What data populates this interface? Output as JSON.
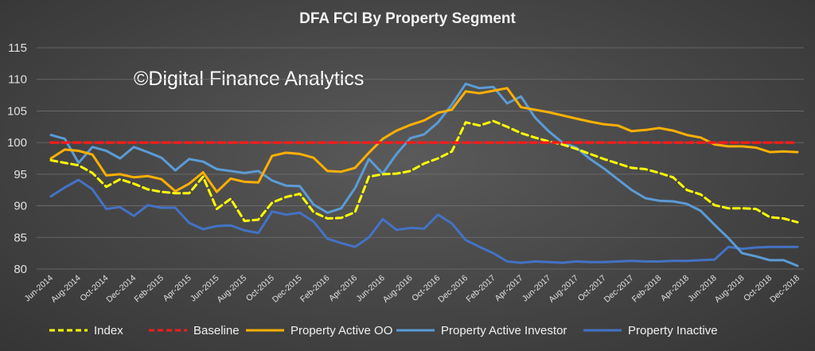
{
  "chart_data": {
    "type": "line",
    "title": "DFA FCI By Property Segment",
    "watermark": "©Digital Finance Analytics",
    "ylim": [
      80,
      115
    ],
    "yticks": [
      "80",
      "85",
      "90",
      "95",
      "100",
      "105",
      "110",
      "115"
    ],
    "grid": true,
    "legend_position": "bottom",
    "categories": [
      "Jun-2014",
      "Jul-2014",
      "Aug-2014",
      "Sep-2014",
      "Oct-2014",
      "Nov-2014",
      "Dec-2014",
      "Jan-2015",
      "Feb-2015",
      "Mar-2015",
      "Apr-2015",
      "May-2015",
      "Jun-2015",
      "Jul-2015",
      "Aug-2015",
      "Sep-2015",
      "Oct-2015",
      "Nov-2015",
      "Dec-2015",
      "Jan-2016",
      "Feb-2016",
      "Mar-2016",
      "Apr-2016",
      "May-2016",
      "Jun-2016",
      "Jul-2016",
      "Aug-2016",
      "Sep-2016",
      "Oct-2016",
      "Nov-2016",
      "Dec-2016",
      "Jan-2017",
      "Feb-2017",
      "Mar-2017",
      "Apr-2017",
      "May-2017",
      "Jun-2017",
      "Jul-2017",
      "Aug-2017",
      "Sep-2017",
      "Oct-2017",
      "Nov-2017",
      "Dec-2017",
      "Jan-2018",
      "Feb-2018",
      "Mar-2018",
      "Apr-2018",
      "May-2018",
      "Jun-2018",
      "Jul-2018",
      "Aug-2018",
      "Sep-2018",
      "Oct-2018",
      "Nov-2018",
      "Dec-2018"
    ],
    "xtick_labels": [
      "Jun-2014",
      "Aug-2014",
      "Oct-2014",
      "Dec-2014",
      "Feb-2015",
      "Apr-2015",
      "Jun-2015",
      "Aug-2015",
      "Oct-2015",
      "Dec-2015",
      "Feb-2016",
      "Apr-2016",
      "Jun-2016",
      "Aug-2016",
      "Oct-2016",
      "Dec-2016",
      "Feb-2017",
      "Apr-2017",
      "Jun-2017",
      "Aug-2017",
      "Oct-2017",
      "Dec-2017",
      "Feb-2018",
      "Apr-2018",
      "Jun-2018",
      "Aug-2018",
      "Oct-2018",
      "Dec-2018"
    ],
    "series": [
      {
        "name": "Index",
        "color": "#ffff00",
        "dash": "dashed",
        "values": [
          97.2,
          96.8,
          96.4,
          95.2,
          93.0,
          94.2,
          93.5,
          92.6,
          92.2,
          92.0,
          92.0,
          94.6,
          89.5,
          91.1,
          87.6,
          87.8,
          90.5,
          91.4,
          91.9,
          89.0,
          88.0,
          88.1,
          89.0,
          94.6,
          95.0,
          95.1,
          95.5,
          96.7,
          97.5,
          98.6,
          103.2,
          102.7,
          103.4,
          102.5,
          101.5,
          100.8,
          100.2,
          99.7,
          99.0,
          98.2,
          97.4,
          96.7,
          96.0,
          95.8,
          95.2,
          94.5,
          92.5,
          91.8,
          90.1,
          89.6,
          89.6,
          89.5,
          88.2,
          88.0,
          87.4
        ]
      },
      {
        "name": "Baseline",
        "color": "#ff1a1a",
        "dash": "dashed",
        "values": [
          100,
          100,
          100,
          100,
          100,
          100,
          100,
          100,
          100,
          100,
          100,
          100,
          100,
          100,
          100,
          100,
          100,
          100,
          100,
          100,
          100,
          100,
          100,
          100,
          100,
          100,
          100,
          100,
          100,
          100,
          100,
          100,
          100,
          100,
          100,
          100,
          100,
          100,
          100,
          100,
          100,
          100,
          100,
          100,
          100,
          100,
          100,
          100,
          100,
          100,
          100,
          100,
          100,
          100,
          100
        ]
      },
      {
        "name": "Property Active OO",
        "color": "#ffb000",
        "dash": "solid",
        "values": [
          97.5,
          98.9,
          98.7,
          98.1,
          94.8,
          95.0,
          94.5,
          94.7,
          94.2,
          92.3,
          93.5,
          95.3,
          92.2,
          94.3,
          93.8,
          93.7,
          97.9,
          98.4,
          98.2,
          97.6,
          95.5,
          95.4,
          96.0,
          98.4,
          100.6,
          101.9,
          102.8,
          103.5,
          104.7,
          105.2,
          108.1,
          107.8,
          108.2,
          108.6,
          105.6,
          105.2,
          104.8,
          104.3,
          103.8,
          103.3,
          102.9,
          102.7,
          101.8,
          102.0,
          102.3,
          101.9,
          101.2,
          100.8,
          99.7,
          99.4,
          99.4,
          99.2,
          98.5,
          98.6,
          98.5
        ]
      },
      {
        "name": "Property Active Investor",
        "color": "#5b9bd5",
        "dash": "solid",
        "values": [
          101.2,
          100.6,
          96.8,
          99.3,
          98.7,
          97.5,
          99.3,
          98.5,
          97.6,
          95.6,
          97.4,
          97.0,
          95.8,
          95.5,
          95.2,
          95.5,
          94.0,
          93.2,
          93.1,
          90.2,
          88.9,
          89.6,
          92.8,
          97.4,
          95.1,
          98.2,
          100.7,
          101.3,
          103.2,
          106.0,
          109.3,
          108.6,
          108.8,
          106.2,
          107.3,
          104.0,
          101.8,
          100.0,
          99.2,
          97.4,
          95.9,
          94.2,
          92.5,
          91.2,
          90.8,
          90.7,
          90.3,
          89.2,
          87.0,
          84.9,
          82.5,
          82.0,
          81.4,
          81.4,
          80.5
        ]
      },
      {
        "name": "Property Inactive",
        "color": "#4472c4",
        "dash": "solid",
        "values": [
          91.5,
          92.9,
          94.1,
          92.6,
          89.5,
          89.8,
          88.4,
          90.1,
          89.7,
          89.7,
          87.3,
          86.3,
          86.8,
          86.9,
          86.1,
          85.7,
          89.1,
          88.6,
          88.9,
          87.5,
          84.8,
          84.1,
          83.5,
          85.0,
          87.9,
          86.2,
          86.5,
          86.4,
          88.6,
          87.2,
          84.6,
          83.5,
          82.5,
          81.2,
          81.0,
          81.2,
          81.1,
          81.0,
          81.2,
          81.1,
          81.1,
          81.2,
          81.3,
          81.2,
          81.2,
          81.3,
          81.3,
          81.4,
          81.5,
          83.5,
          83.2,
          83.4,
          83.5,
          83.5,
          83.5
        ]
      }
    ]
  }
}
